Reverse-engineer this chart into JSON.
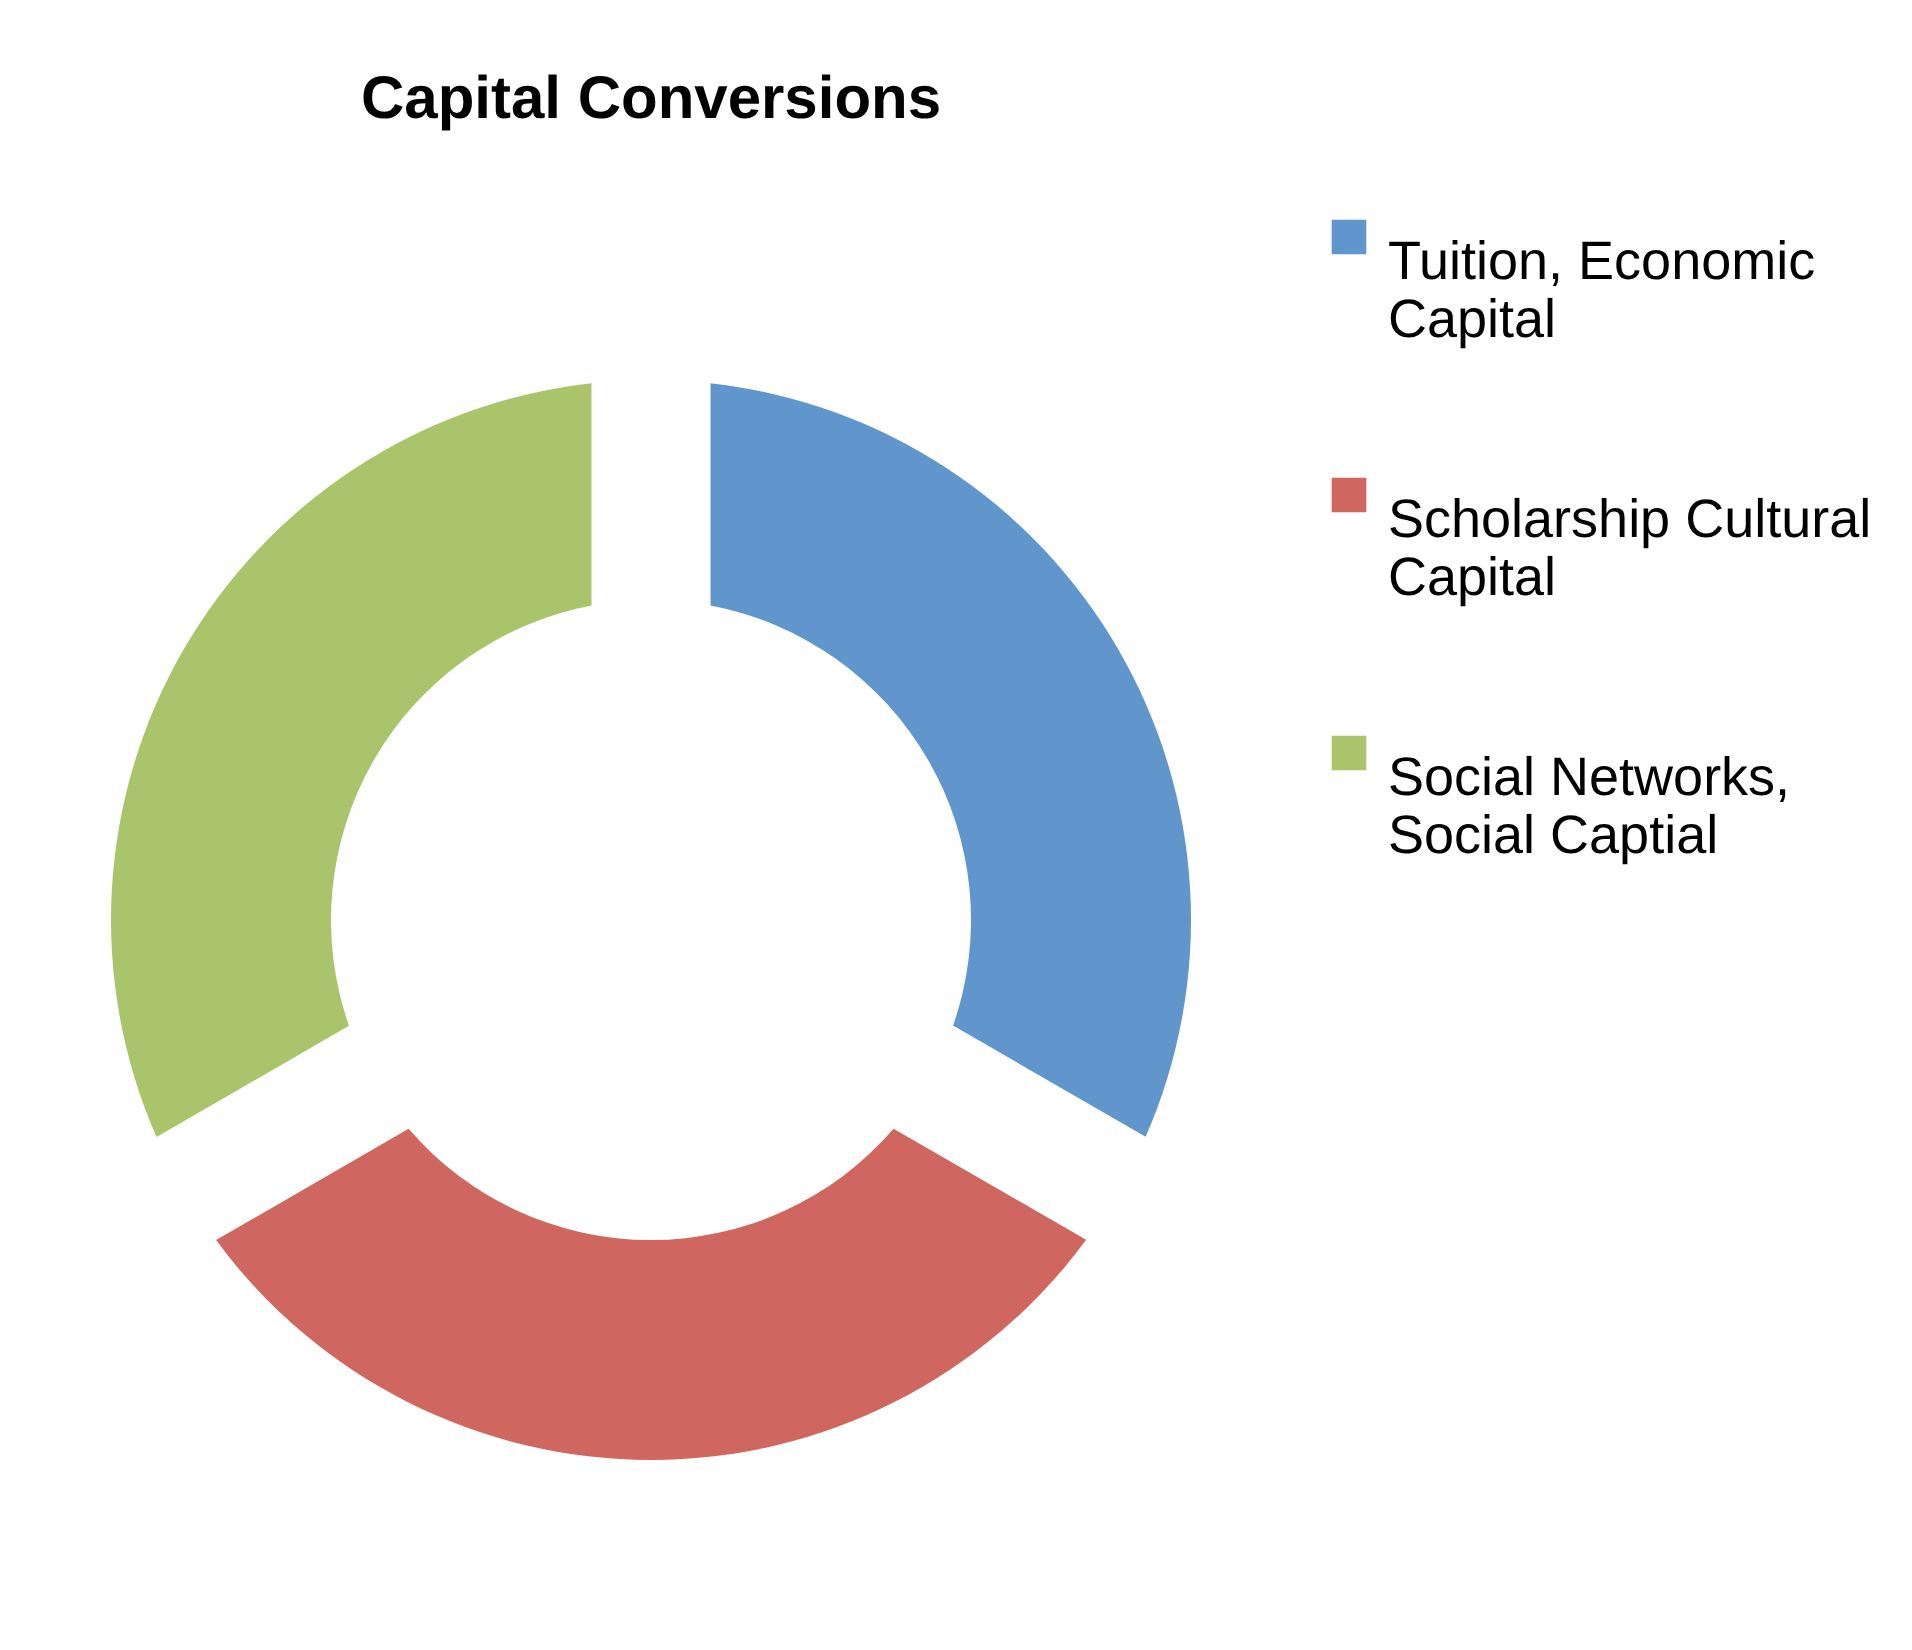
{
  "chart_data": {
    "type": "donut",
    "title": "Capital Conversions",
    "categories": [
      "Tuition, Economic Capital",
      "Scholarship Cultural Capital",
      "Social Networks, Social Captial"
    ],
    "values": [
      33.33,
      33.33,
      33.34
    ],
    "colors": [
      "#6096cb",
      "#cf665f",
      "#aac46b"
    ],
    "legend": "right"
  }
}
